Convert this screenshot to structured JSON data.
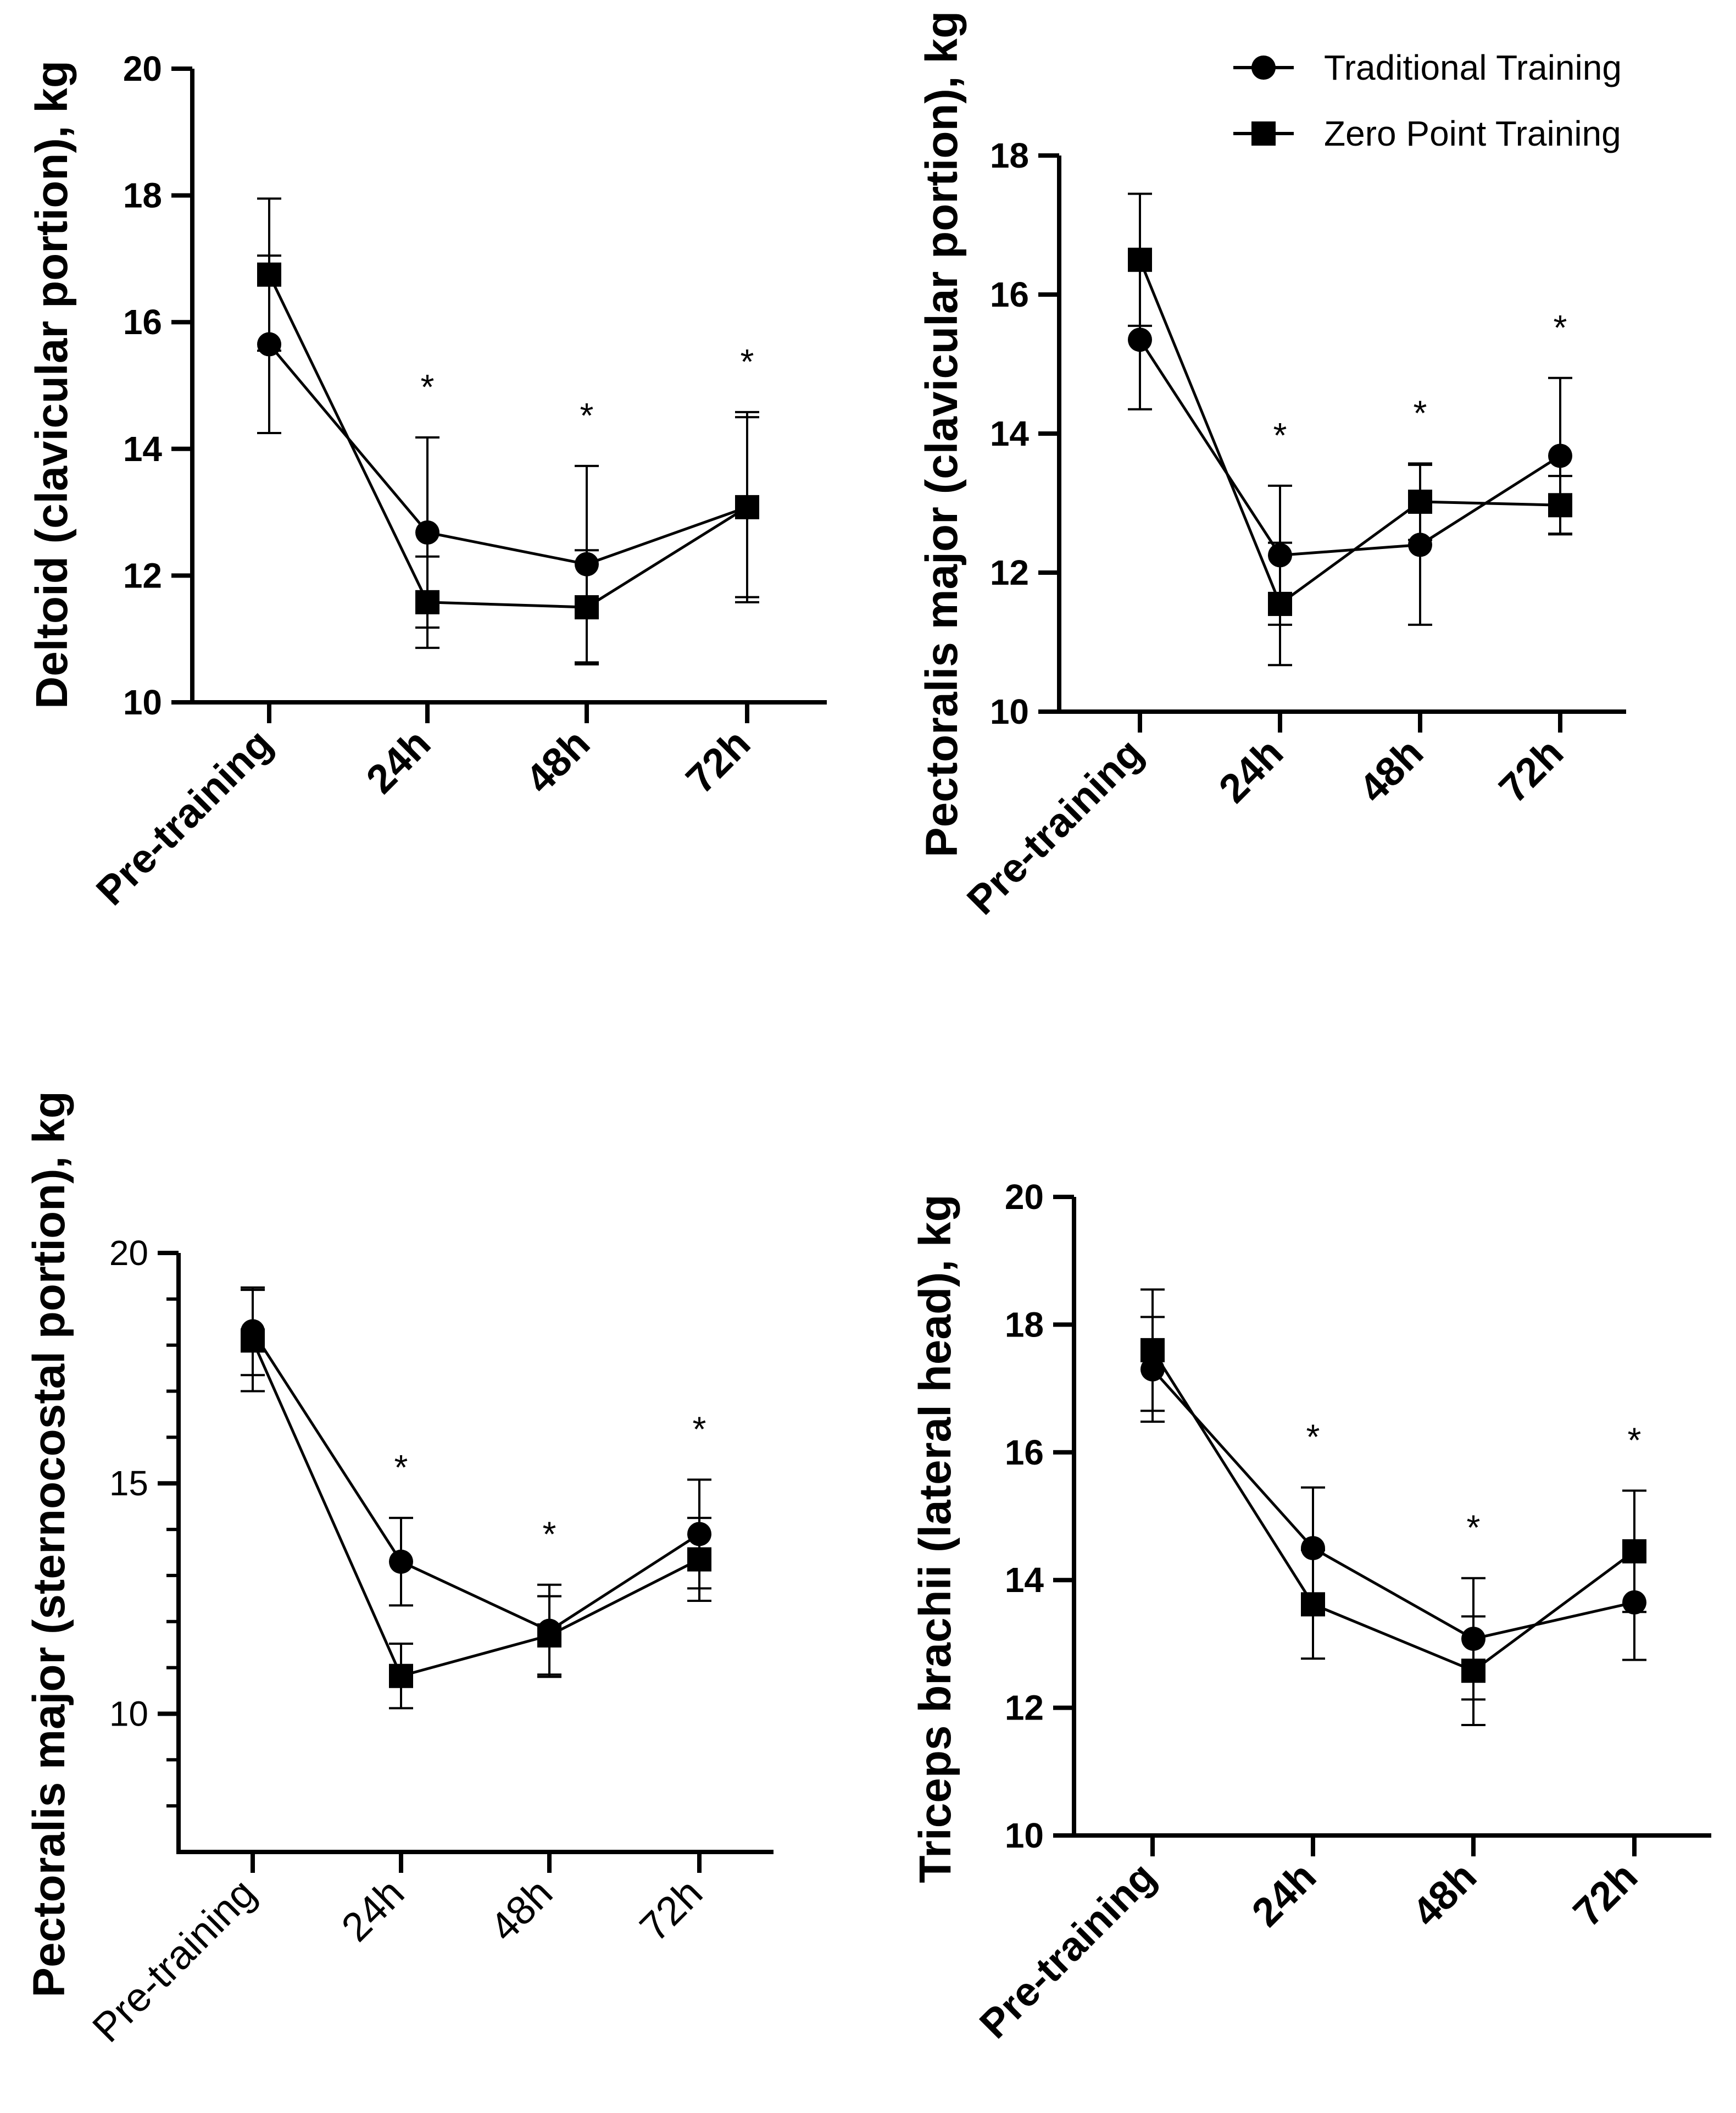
{
  "chart_data": [
    {
      "type": "line",
      "panel": "top-left",
      "ylabel": "Deltoid (clavicular portion), kg",
      "categories": [
        "Pre-training",
        "24h",
        "48h",
        "72h"
      ],
      "ylim": [
        10,
        20
      ],
      "yticks": [
        10,
        12,
        14,
        16,
        18,
        20
      ],
      "minor_ticks": [],
      "series": [
        {
          "name": "Traditional Training",
          "marker": "circle",
          "values": [
            15.65,
            12.68,
            12.18,
            13.08
          ],
          "errors": [
            1.4,
            1.5,
            1.55,
            1.5
          ]
        },
        {
          "name": "Zero Point Training",
          "marker": "square",
          "values": [
            16.75,
            11.58,
            11.5,
            13.08
          ],
          "errors": [
            1.2,
            0.72,
            0.9,
            1.42
          ]
        }
      ],
      "significance": [
        "",
        "*",
        "*",
        "*"
      ]
    },
    {
      "type": "line",
      "panel": "top-right",
      "ylabel": "Pectoralis major (clavicular portion), kg",
      "categories": [
        "Pre-training",
        "24h",
        "48h",
        "72h"
      ],
      "ylim": [
        10,
        18
      ],
      "yticks": [
        10,
        12,
        14,
        16,
        18
      ],
      "minor_ticks": [],
      "series": [
        {
          "name": "Traditional Training",
          "marker": "circle",
          "values": [
            15.35,
            12.25,
            12.4,
            13.68
          ],
          "errors": [
            1.0,
            1.0,
            1.15,
            1.12
          ]
        },
        {
          "name": "Zero Point Training",
          "marker": "square",
          "values": [
            16.5,
            11.55,
            13.02,
            12.97
          ],
          "errors": [
            0.95,
            0.88,
            0.55,
            0.42
          ]
        }
      ],
      "significance": [
        "",
        "*",
        "*",
        "*"
      ]
    },
    {
      "type": "line",
      "panel": "bottom-left",
      "ylabel": "Pectoralis major (sternocostal portion), kg",
      "categories": [
        "Pre-training",
        "24h",
        "48h",
        "72h"
      ],
      "ylim": [
        7,
        20
      ],
      "yticks": [
        10,
        15,
        20
      ],
      "minor_ticks": [
        8,
        9,
        11,
        12,
        13,
        14,
        16,
        17,
        18,
        19
      ],
      "series": [
        {
          "name": "Traditional Training",
          "marker": "circle",
          "values": [
            18.3,
            13.3,
            11.8,
            13.9
          ],
          "errors": [
            0.95,
            0.95,
            1.0,
            1.18
          ]
        },
        {
          "name": "Zero Point Training",
          "marker": "square",
          "values": [
            18.1,
            10.82,
            11.7,
            13.35
          ],
          "errors": [
            1.1,
            0.7,
            0.85,
            0.9
          ]
        }
      ],
      "significance": [
        "",
        "*",
        "*",
        "*"
      ]
    },
    {
      "type": "line",
      "panel": "bottom-right",
      "ylabel": "Triceps brachii (lateral head), kg",
      "categories": [
        "Pre-training",
        "24h",
        "48h",
        "72h"
      ],
      "ylim": [
        10,
        20
      ],
      "yticks": [
        10,
        12,
        14,
        16,
        18,
        20
      ],
      "minor_ticks": [],
      "series": [
        {
          "name": "Traditional Training",
          "marker": "circle",
          "values": [
            17.3,
            14.5,
            13.08,
            13.65
          ],
          "errors": [
            0.82,
            0.95,
            0.95,
            0.9
          ]
        },
        {
          "name": "Zero Point Training",
          "marker": "square",
          "values": [
            17.6,
            13.62,
            12.58,
            14.45
          ],
          "errors": [
            0.95,
            0.85,
            0.85,
            0.95
          ]
        }
      ],
      "significance": [
        "",
        "*",
        "*",
        "*"
      ]
    }
  ],
  "legend": {
    "entries": [
      {
        "label": "Traditional Training",
        "marker": "circle"
      },
      {
        "label": "Zero Point Training",
        "marker": "square"
      }
    ],
    "placement": "top-right"
  }
}
